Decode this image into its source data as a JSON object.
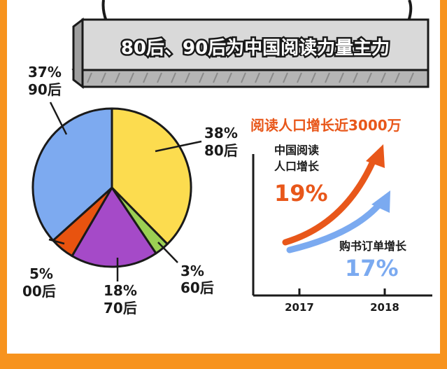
{
  "banner": {
    "title": "80后、90后为中国阅读力量主力"
  },
  "colors": {
    "background": "#f7931e",
    "panel": "#ffffff",
    "banner_fill": "#d9d9d9",
    "orange": "#e8571a",
    "blue": "#7baaf0"
  },
  "chart_data": [
    {
      "type": "pie",
      "slices": [
        {
          "value": 38,
          "pct_label": "38%",
          "group_label": "80后",
          "color": "#fcdc4f"
        },
        {
          "value": 3,
          "pct_label": "3%",
          "group_label": "60后",
          "color": "#9bcf53"
        },
        {
          "value": 18,
          "pct_label": "18%",
          "group_label": "70后",
          "color": "#a54ac8"
        },
        {
          "value": 5,
          "pct_label": "5%",
          "group_label": "00后",
          "color": "#e8530f"
        },
        {
          "value": 37,
          "pct_label": "37%",
          "group_label": "90后",
          "color": "#7daaf0"
        }
      ]
    },
    {
      "type": "line",
      "title": "阅读人口增长近3000万",
      "categories": [
        "2017",
        "2018"
      ],
      "series": [
        {
          "name": "中国阅读人口增长",
          "name_lines": [
            "中国阅读",
            "人口增长"
          ],
          "value_label": "19%",
          "growth_pct": 19,
          "color": "#e8571a"
        },
        {
          "name": "购书订单增长",
          "value_label": "17%",
          "growth_pct": 17,
          "color": "#7baaf0"
        }
      ]
    }
  ]
}
